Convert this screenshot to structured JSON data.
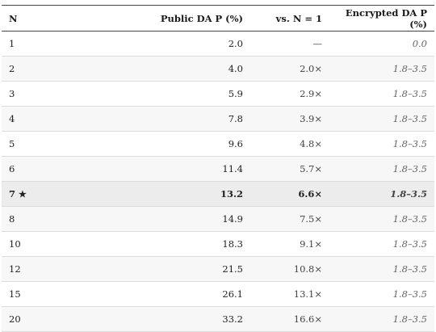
{
  "table": {
    "headers": [
      "N",
      "Public DA P (%)",
      "vs. N = 1",
      "Encrypted DA P (%)"
    ],
    "highlight_marker": "★",
    "rows": [
      {
        "n": "1",
        "public": "2.0",
        "vs": "—",
        "enc": "0.0",
        "highlight": false
      },
      {
        "n": "2",
        "public": "4.0",
        "vs": "2.0×",
        "enc": "1.8–3.5",
        "highlight": false
      },
      {
        "n": "3",
        "public": "5.9",
        "vs": "2.9×",
        "enc": "1.8–3.5",
        "highlight": false
      },
      {
        "n": "4",
        "public": "7.8",
        "vs": "3.9×",
        "enc": "1.8–3.5",
        "highlight": false
      },
      {
        "n": "5",
        "public": "9.6",
        "vs": "4.8×",
        "enc": "1.8–3.5",
        "highlight": false
      },
      {
        "n": "6",
        "public": "11.4",
        "vs": "5.7×",
        "enc": "1.8–3.5",
        "highlight": false
      },
      {
        "n": "7",
        "public": "13.2",
        "vs": "6.6×",
        "enc": "1.8–3.5",
        "highlight": true
      },
      {
        "n": "8",
        "public": "14.9",
        "vs": "7.5×",
        "enc": "1.8–3.5",
        "highlight": false
      },
      {
        "n": "10",
        "public": "18.3",
        "vs": "9.1×",
        "enc": "1.8–3.5",
        "highlight": false
      },
      {
        "n": "12",
        "public": "21.5",
        "vs": "10.8×",
        "enc": "1.8–3.5",
        "highlight": false
      },
      {
        "n": "15",
        "public": "26.1",
        "vs": "13.1×",
        "enc": "1.8–3.5",
        "highlight": false
      },
      {
        "n": "20",
        "public": "33.2",
        "vs": "16.6×",
        "enc": "1.8–3.5",
        "highlight": false
      }
    ]
  }
}
